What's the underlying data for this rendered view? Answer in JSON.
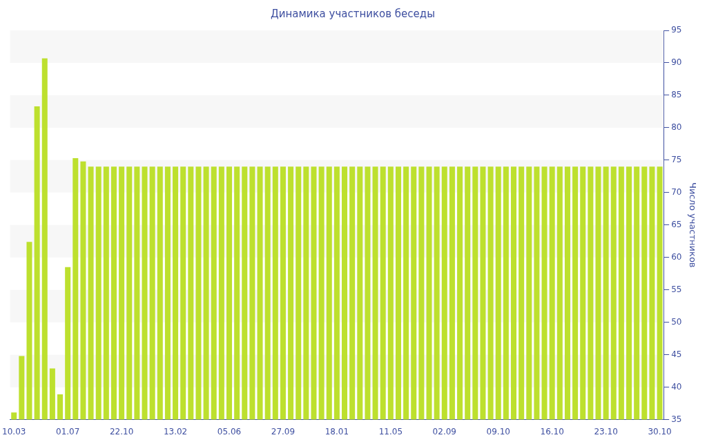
{
  "chart_data": {
    "type": "bar",
    "title": "Динамика участников беседы",
    "ylabel": "Число участников",
    "categories": [
      "10.03",
      null,
      null,
      null,
      null,
      null,
      null,
      "01.07",
      null,
      null,
      null,
      null,
      null,
      null,
      "22.10",
      null,
      null,
      null,
      null,
      null,
      null,
      "13.02",
      null,
      null,
      null,
      null,
      null,
      null,
      "05.06",
      null,
      null,
      null,
      null,
      null,
      null,
      "27.09",
      null,
      null,
      null,
      null,
      null,
      null,
      "18.01",
      null,
      null,
      null,
      null,
      null,
      null,
      "11.05",
      null,
      null,
      null,
      null,
      null,
      null,
      "02.09",
      null,
      null,
      null,
      null,
      null,
      null,
      "09.10",
      null,
      null,
      null,
      null,
      null,
      null,
      "16.10",
      null,
      null,
      null,
      null,
      null,
      null,
      "23.10",
      null,
      null,
      null,
      null,
      null,
      null,
      "30.10"
    ],
    "values": [
      36.1,
      44.8,
      62.4,
      83.3,
      90.7,
      42.9,
      38.9,
      58.5,
      75.3,
      74.8,
      74,
      74,
      74,
      74,
      74,
      74,
      74,
      74,
      74,
      74,
      74,
      74,
      74,
      74,
      74,
      74,
      74,
      74,
      74,
      74,
      74,
      74,
      74,
      74,
      74,
      74,
      74,
      74,
      74,
      74,
      74,
      74,
      74,
      74,
      74,
      74,
      74,
      74,
      74,
      74,
      74,
      74,
      74,
      74,
      74,
      74,
      74,
      74,
      74,
      74,
      74,
      74,
      74,
      74,
      74,
      74,
      74,
      74,
      74,
      74,
      74,
      74,
      74,
      74,
      74,
      74,
      74,
      74,
      74,
      74,
      74,
      74,
      74,
      74,
      74
    ],
    "color": "#bde02e",
    "ylim": [
      35,
      95
    ],
    "yticks": [
      35,
      40,
      45,
      50,
      55,
      60,
      65,
      70,
      75,
      80,
      85,
      90,
      95
    ],
    "legend": false
  }
}
